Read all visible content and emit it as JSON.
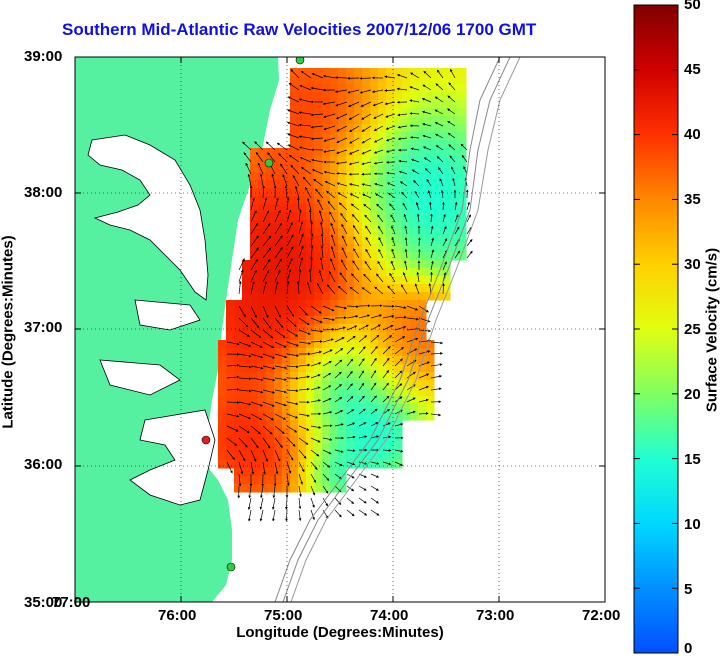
{
  "title": "Southern Mid-Atlantic Raw Velocities 2007/12/06 1700 GMT",
  "xlabel": "Longitude (Degrees:Minutes)",
  "ylabel": "Latitude (Degrees:Minutes)",
  "colorbar_label": "Surface Velocity (cm/s)",
  "x_ticks": [
    "77:00",
    "76:00",
    "75:00",
    "74:00",
    "73:00",
    "72:00"
  ],
  "y_ticks": [
    "39:00",
    "38:00",
    "37:00",
    "36:00",
    "35:00"
  ],
  "colorbar_ticks": [
    "50",
    "45",
    "40",
    "35",
    "30",
    "25",
    "20",
    "15",
    "10",
    "5",
    "0"
  ],
  "colors": {
    "title": "#1010e0",
    "land": "#55f0a0",
    "water_background": "#ffffff",
    "grid": "#000000",
    "arrows": "#000000",
    "station_green": "#2ecc40",
    "station_red": "#e02020"
  },
  "chart_data": {
    "type": "heatmap",
    "title": "Southern Mid-Atlantic Raw Velocities 2007/12/06 1700 GMT",
    "xlabel": "Longitude (Degrees:Minutes)",
    "ylabel": "Latitude (Degrees:Minutes)",
    "xlim": [
      "77:00",
      "72:00"
    ],
    "ylim": [
      "35:00",
      "39:00"
    ],
    "colorbar": {
      "label": "Surface Velocity (cm/s)",
      "range": [
        0,
        50
      ]
    },
    "grid": true
  }
}
